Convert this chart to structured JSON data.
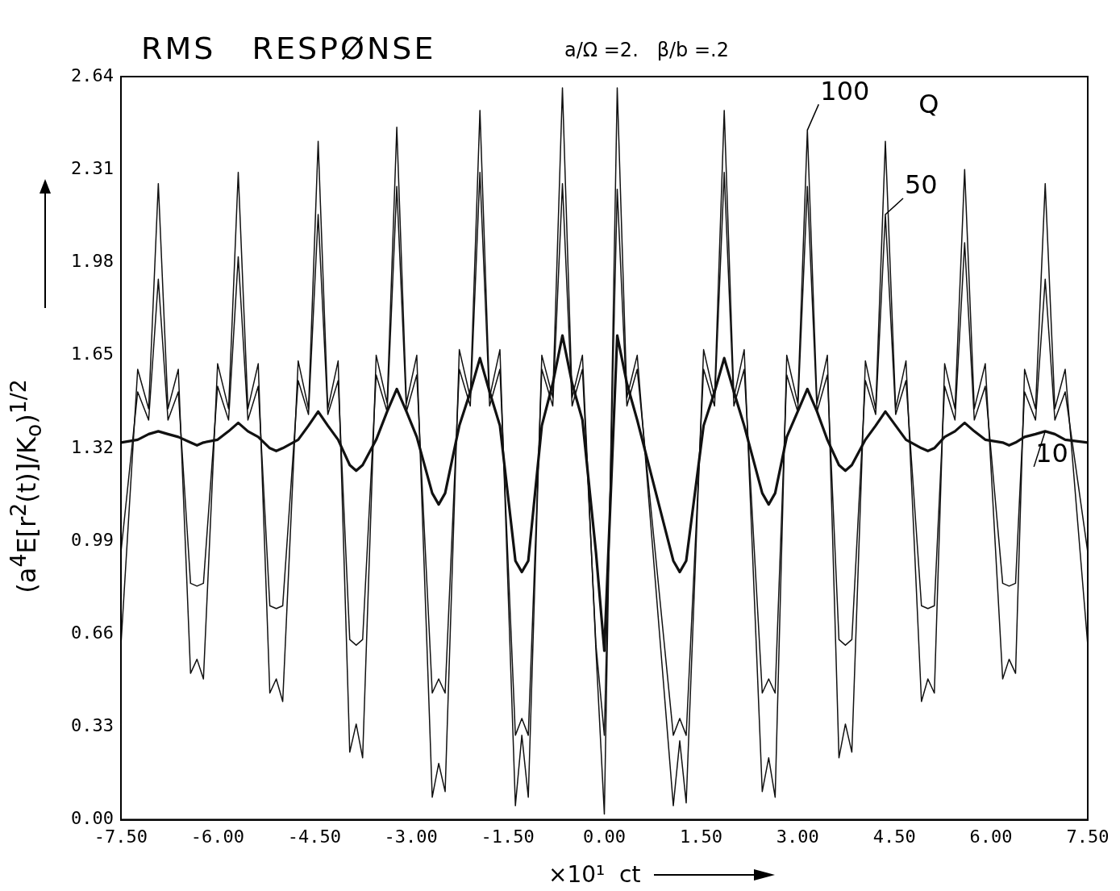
{
  "chart_data": {
    "type": "line",
    "title": "RMS   RESPØNSE",
    "subtitle": "a/Ω =2.   β/b =.2",
    "xlabel": "×10¹  ct",
    "ylabel": "(a$^{4}$E[r$^{2}$(t)]/K$_{o}$)$^{1/2}$",
    "legend_title": "Q",
    "marker": "none",
    "line_style": "solid",
    "x": [
      -7.5,
      -7.24,
      -7.07,
      -6.92,
      -6.77,
      -6.61,
      -6.42,
      -6.32,
      -6.22,
      -6.0,
      -5.83,
      -5.68,
      -5.53,
      -5.37,
      -5.19,
      -5.09,
      -4.99,
      -4.75,
      -4.59,
      -4.44,
      -4.29,
      -4.13,
      -3.95,
      -3.85,
      -3.75,
      -3.54,
      -3.37,
      -3.22,
      -3.07,
      -2.91,
      -2.67,
      -2.57,
      -2.47,
      -2.25,
      -2.08,
      -1.93,
      -1.78,
      -1.62,
      -1.38,
      -1.28,
      -1.18,
      -0.97,
      -0.8,
      -0.65,
      -0.5,
      -0.34,
      -0.13,
      0.0,
      0.2,
      0.35,
      0.51,
      1.07,
      1.17,
      1.27,
      1.54,
      1.71,
      1.86,
      2.01,
      2.17,
      2.45,
      2.55,
      2.65,
      2.83,
      3.0,
      3.15,
      3.3,
      3.46,
      3.64,
      3.74,
      3.84,
      4.05,
      4.21,
      4.36,
      4.52,
      4.68,
      4.92,
      5.02,
      5.12,
      5.28,
      5.44,
      5.59,
      5.74,
      5.91,
      6.18,
      6.28,
      6.38,
      6.52,
      6.69,
      6.84,
      6.99,
      7.15,
      7.5
    ],
    "series": [
      {
        "name": "100",
        "color": "#111111",
        "values": [
          0.62,
          1.6,
          1.46,
          2.26,
          1.46,
          1.6,
          0.52,
          0.57,
          0.5,
          1.62,
          1.46,
          2.3,
          1.46,
          1.62,
          0.45,
          0.5,
          0.42,
          1.63,
          1.46,
          2.41,
          1.46,
          1.63,
          0.24,
          0.34,
          0.22,
          1.65,
          1.48,
          2.46,
          1.48,
          1.65,
          0.08,
          0.2,
          0.1,
          1.67,
          1.5,
          2.52,
          1.5,
          1.67,
          0.05,
          0.3,
          0.08,
          1.65,
          1.5,
          2.6,
          1.5,
          1.65,
          0.6,
          0.02,
          2.6,
          1.5,
          1.65,
          0.05,
          0.28,
          0.06,
          1.67,
          1.5,
          2.52,
          1.5,
          1.67,
          0.1,
          0.22,
          0.08,
          1.65,
          1.48,
          2.45,
          1.48,
          1.65,
          0.22,
          0.34,
          0.24,
          1.63,
          1.46,
          2.41,
          1.46,
          1.63,
          0.42,
          0.5,
          0.45,
          1.62,
          1.46,
          2.31,
          1.46,
          1.62,
          0.5,
          0.57,
          0.52,
          1.6,
          1.46,
          2.26,
          1.46,
          1.6,
          0.62
        ]
      },
      {
        "name": "50",
        "color": "#111111",
        "values": [
          0.95,
          1.52,
          1.42,
          1.92,
          1.42,
          1.52,
          0.84,
          0.83,
          0.84,
          1.54,
          1.42,
          2.0,
          1.42,
          1.54,
          0.76,
          0.75,
          0.76,
          1.56,
          1.44,
          2.15,
          1.44,
          1.56,
          0.64,
          0.62,
          0.64,
          1.58,
          1.45,
          2.25,
          1.45,
          1.58,
          0.45,
          0.5,
          0.45,
          1.6,
          1.47,
          2.3,
          1.47,
          1.6,
          0.3,
          0.36,
          0.3,
          1.6,
          1.47,
          2.26,
          1.47,
          1.6,
          0.62,
          0.3,
          2.24,
          1.47,
          1.6,
          0.3,
          0.36,
          0.3,
          1.6,
          1.47,
          2.3,
          1.47,
          1.6,
          0.45,
          0.5,
          0.45,
          1.58,
          1.45,
          2.25,
          1.45,
          1.58,
          0.64,
          0.62,
          0.64,
          1.56,
          1.44,
          2.15,
          1.44,
          1.56,
          0.76,
          0.75,
          0.76,
          1.54,
          1.42,
          2.05,
          1.42,
          1.54,
          0.84,
          0.83,
          0.84,
          1.52,
          1.42,
          1.92,
          1.42,
          1.52,
          0.95
        ]
      },
      {
        "name": "10",
        "color": "#111111",
        "values": [
          1.34,
          1.35,
          1.37,
          1.38,
          1.37,
          1.36,
          1.34,
          1.33,
          1.34,
          1.35,
          1.38,
          1.41,
          1.38,
          1.36,
          1.32,
          1.31,
          1.32,
          1.35,
          1.4,
          1.45,
          1.4,
          1.35,
          1.26,
          1.24,
          1.26,
          1.35,
          1.45,
          1.53,
          1.45,
          1.36,
          1.16,
          1.12,
          1.16,
          1.4,
          1.52,
          1.64,
          1.52,
          1.4,
          0.92,
          0.88,
          0.92,
          1.4,
          1.55,
          1.72,
          1.55,
          1.42,
          0.95,
          0.6,
          1.72,
          1.55,
          1.42,
          0.92,
          0.88,
          0.92,
          1.4,
          1.52,
          1.64,
          1.52,
          1.4,
          1.16,
          1.12,
          1.16,
          1.36,
          1.45,
          1.53,
          1.45,
          1.35,
          1.26,
          1.24,
          1.26,
          1.35,
          1.4,
          1.45,
          1.4,
          1.35,
          1.32,
          1.31,
          1.32,
          1.36,
          1.38,
          1.41,
          1.38,
          1.35,
          1.34,
          1.33,
          1.34,
          1.36,
          1.37,
          1.38,
          1.37,
          1.35,
          1.34
        ]
      }
    ],
    "xlim": [
      -7.5,
      7.5
    ],
    "xticks": [
      {
        "value": -7.5,
        "label": "-7.50"
      },
      {
        "value": -6,
        "label": "-6.00"
      },
      {
        "value": -4.5,
        "label": "-4.50"
      },
      {
        "value": -3,
        "label": "-3.00"
      },
      {
        "value": -1.5,
        "label": "-1.50"
      },
      {
        "value": 0,
        "label": "0.00"
      },
      {
        "value": 1.5,
        "label": "1.50"
      },
      {
        "value": 3,
        "label": "3.00"
      },
      {
        "value": 4.5,
        "label": "4.50"
      },
      {
        "value": 6,
        "label": "6.00"
      },
      {
        "value": 7.5,
        "label": "7.50"
      }
    ],
    "ylim": [
      0,
      2.64
    ],
    "yticks": [
      {
        "value": 0,
        "label": "0.00"
      },
      0.33,
      0.66,
      0.99,
      1.32,
      1.65,
      1.98,
      2.31,
      2.64
    ]
  }
}
